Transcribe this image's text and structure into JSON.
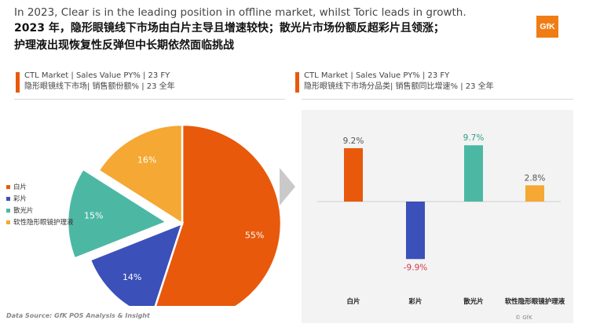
{
  "headline": {
    "en": "In 2023, Clear is in the leading position in offline market, whilst Toric leads in growth.",
    "zh_line1": "2023 年，隐形眼镜线下市场由白片主导且增速较快；散光片市场份额反超彩片且领涨；",
    "zh_line2": "护理液出现恢复性反弹但中长期依然面临挑战"
  },
  "logo": "GfK",
  "left_panel": {
    "line1": "CTL Market | Sales Value PY% | 23 FY",
    "line2": "隐形眼镜线下市场| 销售额份额% | 23 全年"
  },
  "right_panel": {
    "line1": "CTL Market | Sales Value PY% | 23 FY",
    "line2": "隐形眼镜线下市场分品类| 销售额同比增速% | 23 全年"
  },
  "source": "Data Source: GfK POS Analysis & Insight",
  "copyright": "© GfK",
  "colors": {
    "clear": "#e8590c",
    "color": "#3b50b8",
    "toric": "#4cb8a4",
    "solution": "#f5a833"
  },
  "chart_data": [
    {
      "type": "pie",
      "categories": [
        "白片",
        "彩片",
        "散光片",
        "软性隐形眼镜护理液"
      ],
      "values": [
        55,
        14,
        15,
        16
      ],
      "labels": [
        "55%",
        "14%",
        "15%",
        "16%"
      ],
      "legend_position": "left",
      "exploded": "散光片"
    },
    {
      "type": "bar",
      "categories": [
        "白片",
        "彩片",
        "散光片",
        "软性隐形眼镜护理液"
      ],
      "values": [
        9.2,
        -9.9,
        9.7,
        2.8
      ],
      "labels": [
        "9.2%",
        "-9.9%",
        "9.7%",
        "2.8%"
      ],
      "grid": false
    }
  ]
}
